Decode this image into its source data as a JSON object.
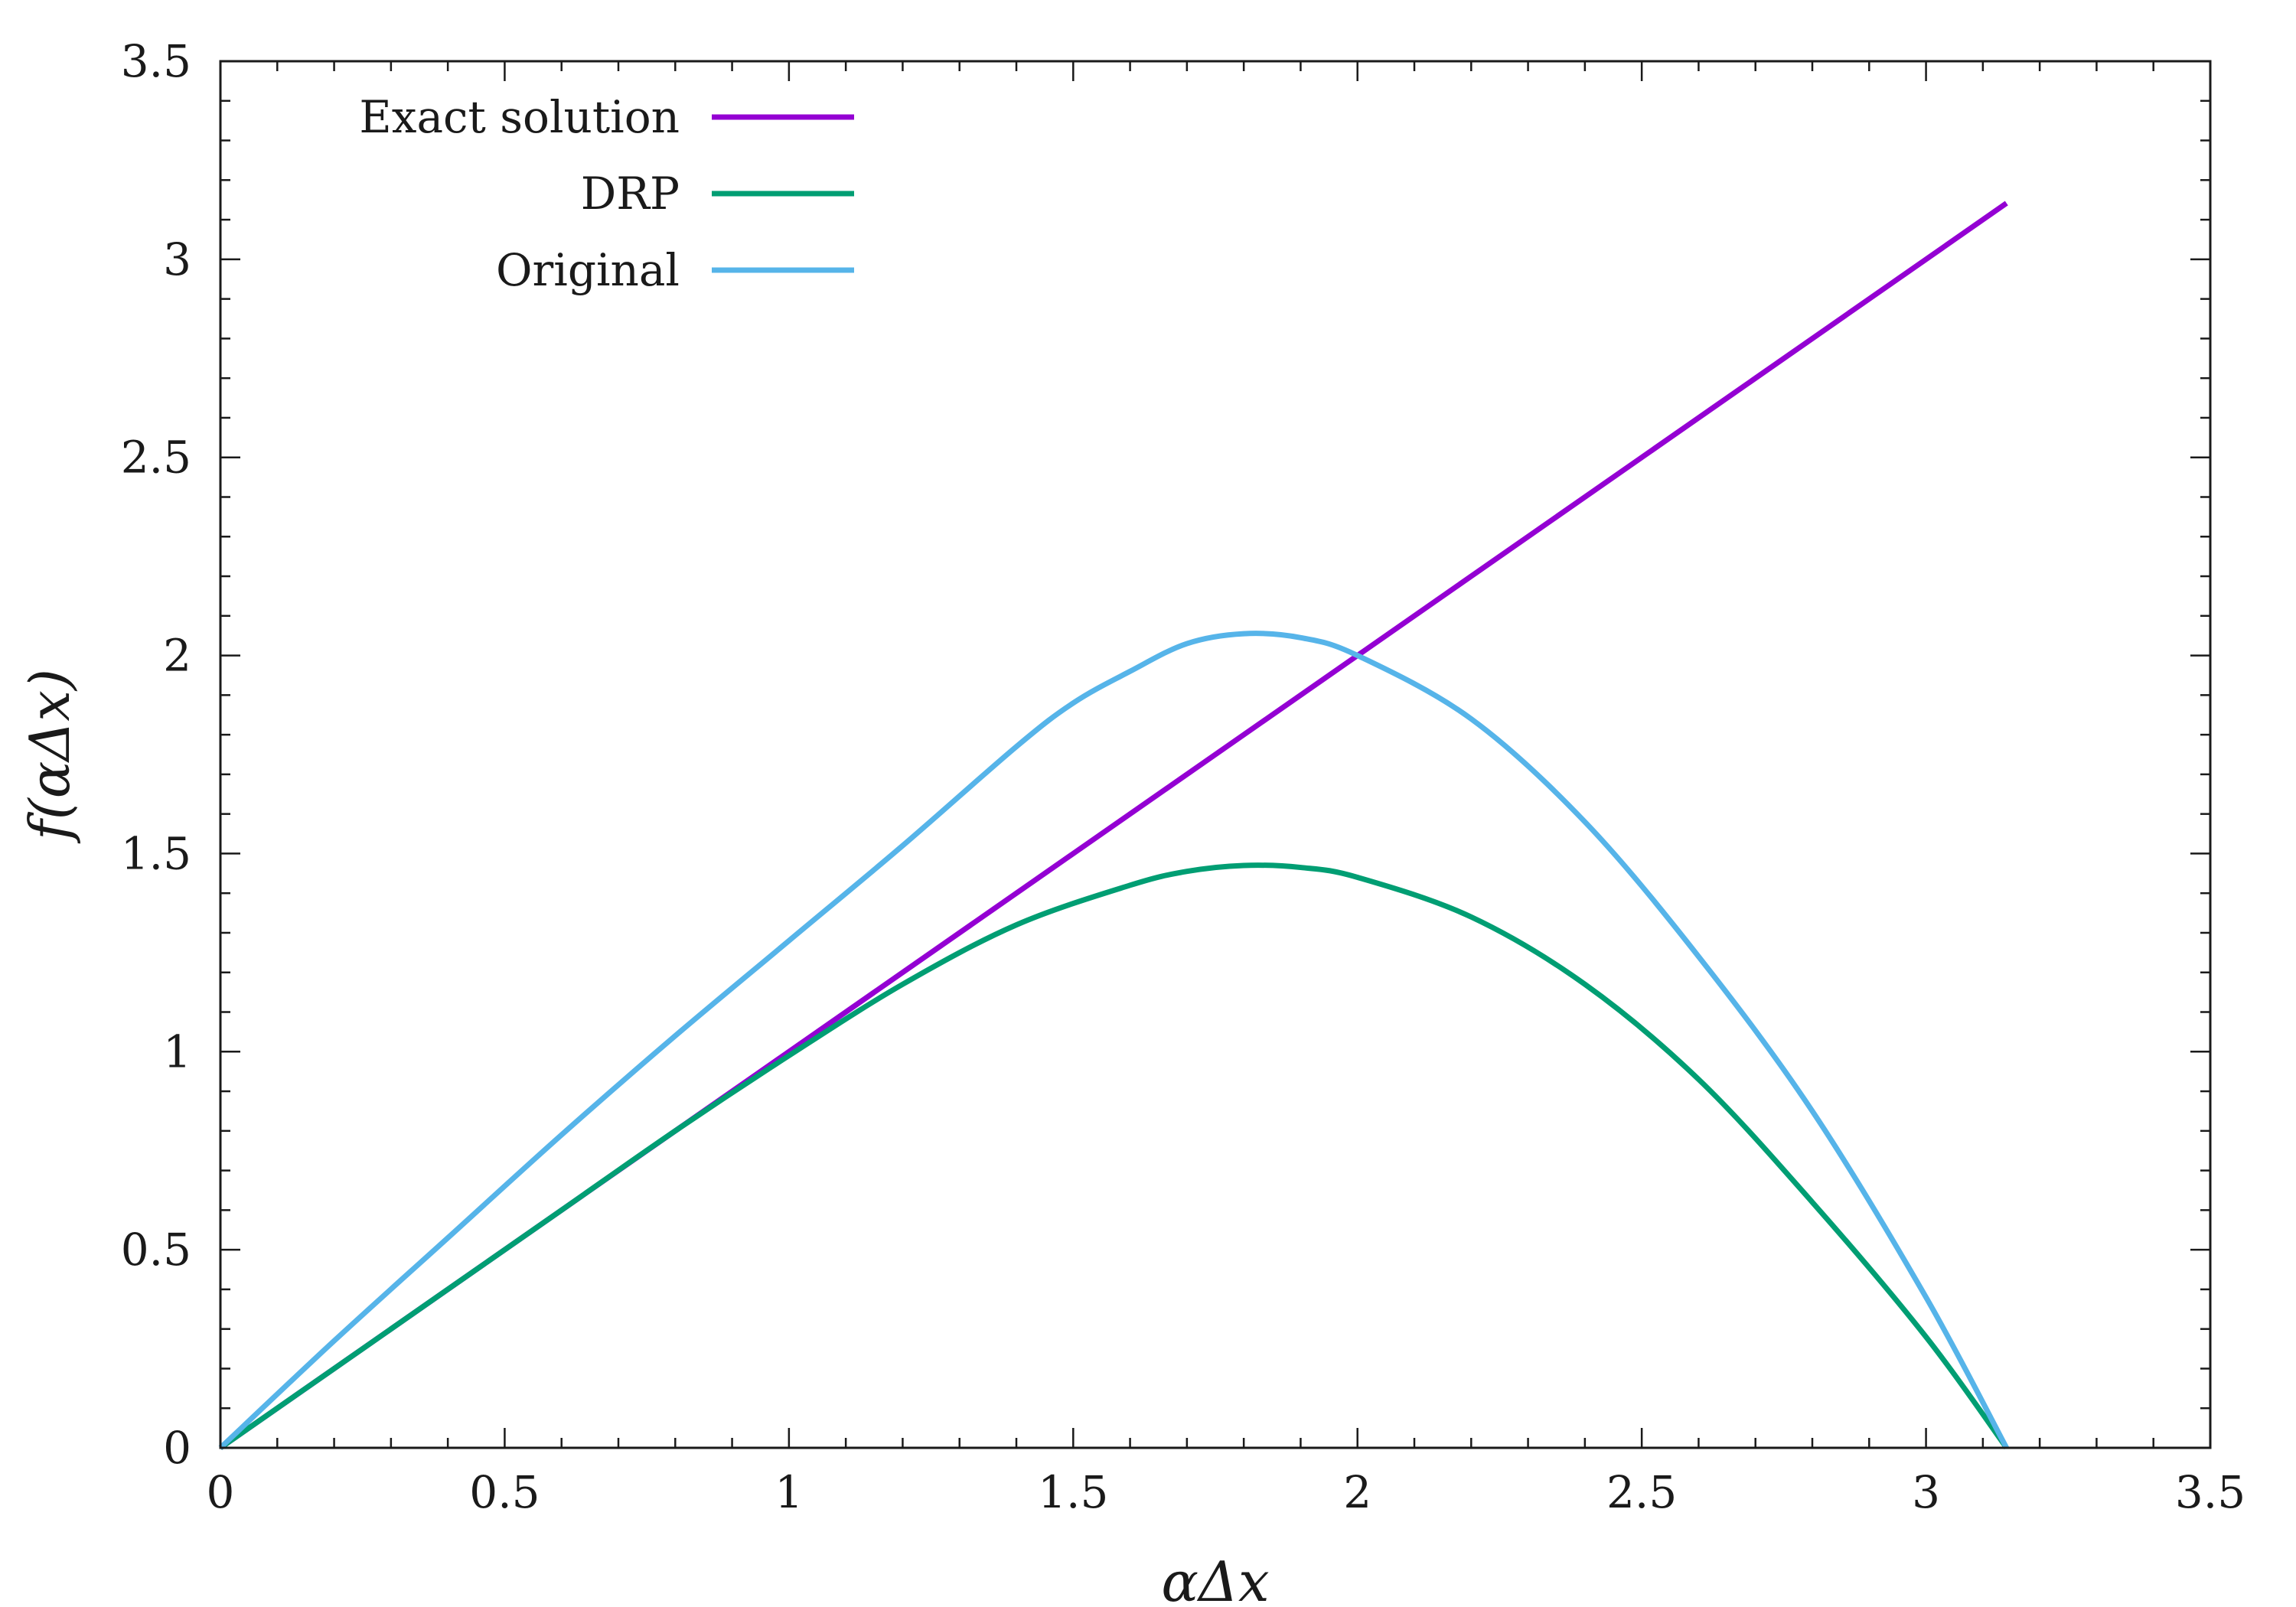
{
  "chart_data": {
    "type": "line",
    "title": "",
    "xlabel": "αΔx",
    "ylabel": "f(αΔx)",
    "xlim": [
      0,
      3.5
    ],
    "ylim": [
      0,
      3.5
    ],
    "x_ticks": [
      0,
      0.5,
      1,
      1.5,
      2,
      2.5,
      3,
      3.5
    ],
    "y_ticks": [
      0,
      0.5,
      1,
      1.5,
      2,
      2.5,
      3,
      3.5
    ],
    "x_tick_labels": [
      "0",
      "0.5",
      "1",
      "1.5",
      "2",
      "2.5",
      "3",
      "3.5"
    ],
    "y_tick_labels": [
      "0",
      "0.5",
      "1",
      "1.5",
      "2",
      "2.5",
      "3",
      "3.5"
    ],
    "grid": false,
    "legend_position": "top-left",
    "series": [
      {
        "name": "Exact solution",
        "color": "#9400D3",
        "x": [
          0,
          3.1416
        ],
        "y": [
          0,
          3.1416
        ]
      },
      {
        "name": "DRP",
        "color": "#009E73",
        "x": [
          0,
          0.2,
          0.4,
          0.6,
          0.8,
          1.0,
          1.2,
          1.4,
          1.6,
          1.7,
          1.8,
          1.9,
          2.0,
          2.2,
          2.4,
          2.6,
          2.8,
          3.0,
          3.1416
        ],
        "y": [
          0,
          0.2,
          0.4,
          0.6,
          0.8,
          0.99,
          1.17,
          1.32,
          1.42,
          1.455,
          1.47,
          1.465,
          1.44,
          1.34,
          1.17,
          0.93,
          0.62,
          0.28,
          0
        ]
      },
      {
        "name": "Original",
        "color": "#56B4E9",
        "x": [
          0,
          0.2,
          0.4,
          0.6,
          0.8,
          1.0,
          1.2,
          1.4,
          1.5,
          1.6,
          1.7,
          1.8,
          1.9,
          2.0,
          2.2,
          2.4,
          2.6,
          2.8,
          3.0,
          3.1416
        ],
        "y": [
          0,
          0.27,
          0.53,
          0.79,
          1.04,
          1.28,
          1.52,
          1.77,
          1.88,
          1.96,
          2.03,
          2.055,
          2.045,
          2.0,
          1.84,
          1.58,
          1.24,
          0.85,
          0.38,
          0
        ]
      }
    ]
  }
}
